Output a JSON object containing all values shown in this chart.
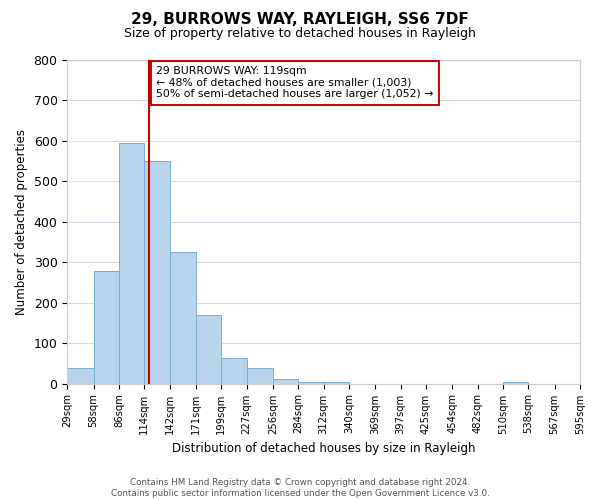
{
  "title": "29, BURROWS WAY, RAYLEIGH, SS6 7DF",
  "subtitle": "Size of property relative to detached houses in Rayleigh",
  "xlabel": "Distribution of detached houses by size in Rayleigh",
  "ylabel": "Number of detached properties",
  "bar_color": "#b8d4ea",
  "bar_edge_color": "#7aaed0",
  "background_color": "#ffffff",
  "grid_color": "#d0dce8",
  "vline_x": 119,
  "vline_color": "#cc0000",
  "bin_edges": [
    29,
    58,
    86,
    114,
    142,
    171,
    199,
    227,
    256,
    284,
    312,
    340,
    369,
    397,
    425,
    454,
    482,
    510,
    538,
    567,
    595
  ],
  "bin_heights": [
    38,
    278,
    594,
    551,
    325,
    170,
    63,
    38,
    12,
    5,
    5,
    0,
    0,
    0,
    0,
    0,
    0,
    5,
    0,
    0
  ],
  "tick_labels": [
    "29sqm",
    "58sqm",
    "86sqm",
    "114sqm",
    "142sqm",
    "171sqm",
    "199sqm",
    "227sqm",
    "256sqm",
    "284sqm",
    "312sqm",
    "340sqm",
    "369sqm",
    "397sqm",
    "425sqm",
    "454sqm",
    "482sqm",
    "510sqm",
    "538sqm",
    "567sqm",
    "595sqm"
  ],
  "annotation_title": "29 BURROWS WAY: 119sqm",
  "annotation_line1": "← 48% of detached houses are smaller (1,003)",
  "annotation_line2": "50% of semi-detached houses are larger (1,052) →",
  "annotation_box_color": "#ffffff",
  "annotation_box_edge": "#cc0000",
  "ylim": [
    0,
    800
  ],
  "yticks": [
    0,
    100,
    200,
    300,
    400,
    500,
    600,
    700,
    800
  ],
  "footer_line1": "Contains HM Land Registry data © Crown copyright and database right 2024.",
  "footer_line2": "Contains public sector information licensed under the Open Government Licence v3.0."
}
